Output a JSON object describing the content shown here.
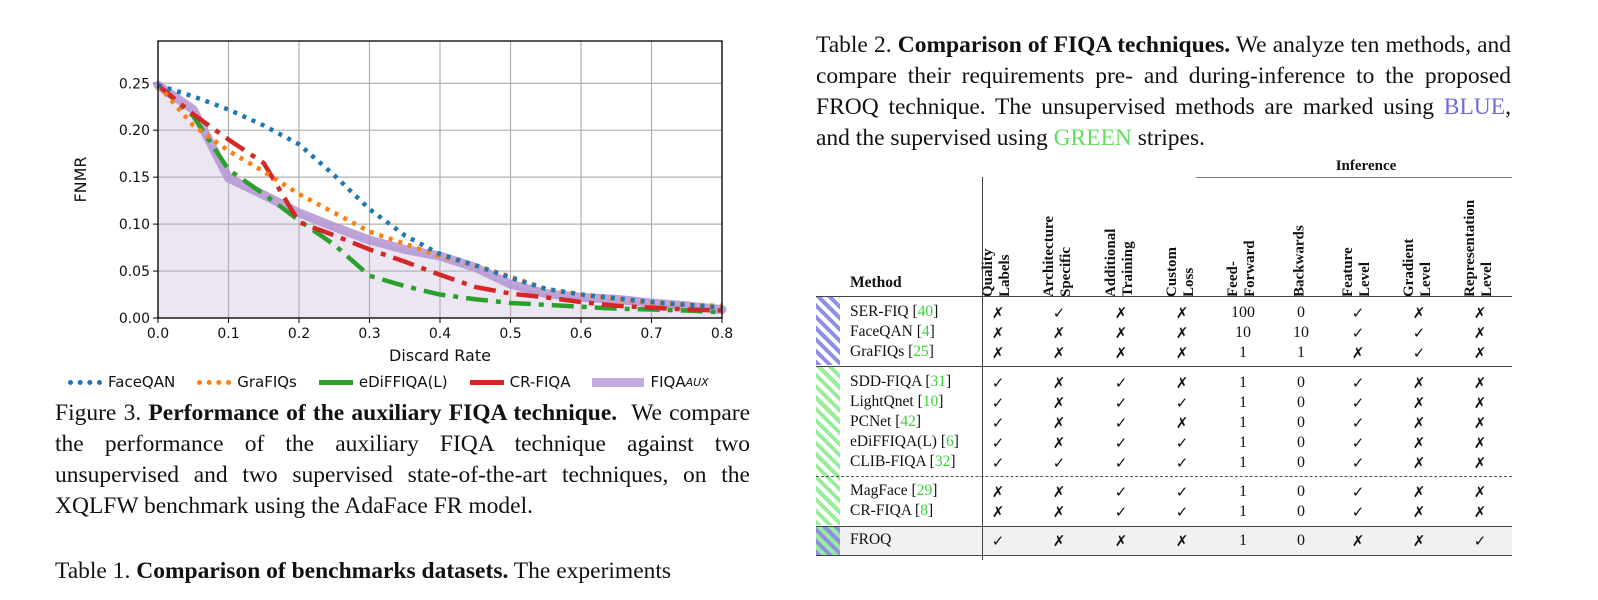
{
  "chart_data": {
    "type": "line",
    "title": "",
    "xlabel": "Discard Rate",
    "ylabel": "FNMR",
    "xlim": [
      0.0,
      0.8
    ],
    "ylim": [
      0.0,
      0.295
    ],
    "xticks": [
      "0.0",
      "0.1",
      "0.2",
      "0.3",
      "0.4",
      "0.5",
      "0.6",
      "0.7",
      "0.8"
    ],
    "yticks": [
      "0.00",
      "0.05",
      "0.10",
      "0.15",
      "0.20",
      "0.25"
    ],
    "grid": true,
    "legend_position": "bottom",
    "series": [
      {
        "name": "FaceQAN",
        "color": "#1f77b4",
        "style": "dotted",
        "x": [
          0.0,
          0.05,
          0.1,
          0.15,
          0.2,
          0.25,
          0.3,
          0.35,
          0.4,
          0.45,
          0.5,
          0.55,
          0.6,
          0.65,
          0.7,
          0.75,
          0.8
        ],
        "y": [
          0.248,
          0.236,
          0.222,
          0.205,
          0.185,
          0.152,
          0.116,
          0.088,
          0.068,
          0.056,
          0.043,
          0.031,
          0.025,
          0.021,
          0.017,
          0.014,
          0.011
        ]
      },
      {
        "name": "GraFIQs",
        "color": "#ff7f0e",
        "style": "dotted",
        "x": [
          0.0,
          0.05,
          0.1,
          0.15,
          0.2,
          0.25,
          0.3,
          0.35,
          0.4,
          0.45,
          0.5,
          0.55,
          0.6,
          0.65,
          0.7,
          0.75,
          0.8
        ],
        "y": [
          0.248,
          0.205,
          0.178,
          0.156,
          0.132,
          0.112,
          0.092,
          0.079,
          0.066,
          0.056,
          0.044,
          0.031,
          0.025,
          0.02,
          0.016,
          0.014,
          0.013
        ]
      },
      {
        "name": "eDiFFIQA(L)",
        "color": "#2ca02c",
        "style": "dashdot",
        "x": [
          0.0,
          0.05,
          0.1,
          0.15,
          0.2,
          0.25,
          0.3,
          0.35,
          0.4,
          0.45,
          0.5,
          0.55,
          0.6,
          0.65,
          0.7,
          0.75,
          0.8
        ],
        "y": [
          0.248,
          0.215,
          0.158,
          0.132,
          0.104,
          0.078,
          0.045,
          0.034,
          0.025,
          0.02,
          0.016,
          0.014,
          0.012,
          0.01,
          0.009,
          0.008,
          0.006
        ]
      },
      {
        "name": "CR-FIQA",
        "color": "#d62728",
        "style": "dashdot",
        "x": [
          0.0,
          0.05,
          0.1,
          0.15,
          0.2,
          0.25,
          0.3,
          0.35,
          0.4,
          0.45,
          0.5,
          0.55,
          0.6,
          0.65,
          0.7,
          0.75,
          0.8
        ],
        "y": [
          0.248,
          0.217,
          0.19,
          0.165,
          0.102,
          0.088,
          0.073,
          0.06,
          0.046,
          0.033,
          0.026,
          0.022,
          0.017,
          0.013,
          0.011,
          0.009,
          0.008
        ]
      },
      {
        "name": "FIQA",
        "name_subscript": "AUX",
        "color": "#b494d4",
        "style": "solid-thick",
        "x": [
          0.0,
          0.05,
          0.1,
          0.15,
          0.2,
          0.25,
          0.3,
          0.35,
          0.4,
          0.45,
          0.5,
          0.55,
          0.6,
          0.65,
          0.7,
          0.75,
          0.8
        ],
        "y": [
          0.248,
          0.222,
          0.149,
          0.131,
          0.112,
          0.097,
          0.083,
          0.073,
          0.066,
          0.054,
          0.036,
          0.026,
          0.022,
          0.02,
          0.016,
          0.013,
          0.009
        ]
      }
    ]
  },
  "figure3": {
    "label": "Figure 3.",
    "bold": "Performance of the auxiliary FIQA technique.",
    "text": "We compare the performance of the auxiliary FIQA technique against two unsupervised and two supervised state-of-the-art techniques, on the XQLFW benchmark using the AdaFace FR model."
  },
  "table1": {
    "label": "Table 1.",
    "bold": "Comparison of benchmarks datasets.",
    "text": "The experiments"
  },
  "table2": {
    "label": "Table 2.",
    "bold": "Comparison of FIQA techniques.",
    "text_a": "We analyze ten methods, and compare their requirements pre- and during-inference to the proposed FROQ technique.  The unsupervised methods are marked using",
    "blue_word": "BLUE",
    "text_b": ", and the supervised using",
    "green_word": "GREEN",
    "text_c": "stripes.",
    "group_header": "Inference",
    "method_header": "Method",
    "columns": [
      [
        "Quality",
        "Labels"
      ],
      [
        "Architecture",
        "Specific"
      ],
      [
        "Additional",
        "Training"
      ],
      [
        "Custom",
        "Loss"
      ],
      [
        "Feed-",
        "Forward"
      ],
      [
        "Backwards"
      ],
      [
        "Feature",
        "Level"
      ],
      [
        "Gradient",
        "Level"
      ],
      [
        "Representation",
        "Level"
      ]
    ],
    "rows": [
      {
        "name": "SER-FIQ",
        "cite": "40",
        "group": "unsup",
        "cells": [
          "✗",
          "✓",
          "✗",
          "✗",
          "100",
          "0",
          "✓",
          "✗",
          "✗"
        ]
      },
      {
        "name": "FaceQAN",
        "cite": "4",
        "group": "unsup",
        "cells": [
          "✗",
          "✗",
          "✗",
          "✗",
          "10",
          "10",
          "✓",
          "✓",
          "✗"
        ]
      },
      {
        "name": "GraFIQs",
        "cite": "25",
        "group": "unsup",
        "cells": [
          "✗",
          "✗",
          "✗",
          "✗",
          "1",
          "1",
          "✗",
          "✓",
          "✗"
        ]
      },
      {
        "name": "SDD-FIQA",
        "cite": "31",
        "group": "sup",
        "cells": [
          "✓",
          "✗",
          "✓",
          "✗",
          "1",
          "0",
          "✓",
          "✗",
          "✗"
        ]
      },
      {
        "name": "LightQnet",
        "cite": "10",
        "group": "sup",
        "cells": [
          "✓",
          "✗",
          "✓",
          "✓",
          "1",
          "0",
          "✓",
          "✗",
          "✗"
        ]
      },
      {
        "name": "PCNet",
        "cite": "42",
        "group": "sup",
        "cells": [
          "✓",
          "✗",
          "✓",
          "✗",
          "1",
          "0",
          "✓",
          "✗",
          "✗"
        ]
      },
      {
        "name": "eDiFFIQA(L)",
        "cite": "6",
        "group": "sup",
        "cells": [
          "✓",
          "✗",
          "✓",
          "✓",
          "1",
          "0",
          "✓",
          "✗",
          "✗"
        ]
      },
      {
        "name": "CLIB-FIQA",
        "cite": "32",
        "group": "sup",
        "cells": [
          "✓",
          "✓",
          "✓",
          "✓",
          "1",
          "0",
          "✓",
          "✗",
          "✗"
        ]
      },
      {
        "name": "MagFace",
        "cite": "29",
        "group": "sup2",
        "cells": [
          "✗",
          "✗",
          "✓",
          "✓",
          "1",
          "0",
          "✓",
          "✗",
          "✗"
        ]
      },
      {
        "name": "CR-FIQA",
        "cite": "8",
        "group": "sup2",
        "cells": [
          "✗",
          "✗",
          "✓",
          "✓",
          "1",
          "0",
          "✓",
          "✗",
          "✗"
        ]
      },
      {
        "name": "FROQ",
        "cite": "",
        "group": "froq",
        "cells": [
          "✓",
          "✗",
          "✗",
          "✗",
          "1",
          "0",
          "✗",
          "✗",
          "✓"
        ]
      }
    ],
    "colors": {
      "blue": "#8f8fe8",
      "green": "#98ee98"
    }
  }
}
